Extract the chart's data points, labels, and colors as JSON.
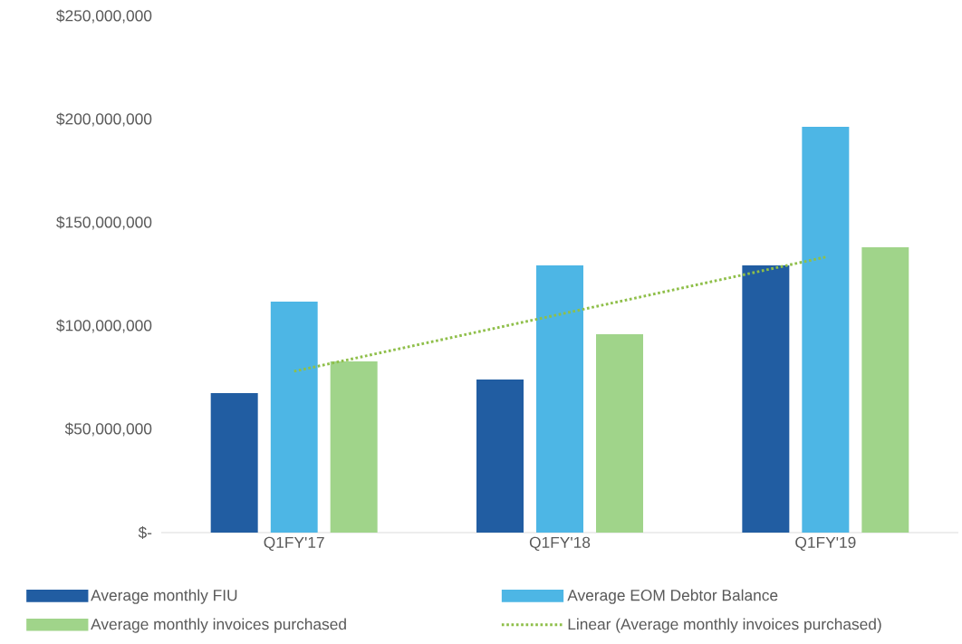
{
  "chart_data": {
    "type": "bar",
    "categories": [
      "Q1FY'17",
      "Q1FY'18",
      "Q1FY'19"
    ],
    "series": [
      {
        "name": "Average monthly FIU",
        "color": "#215da2",
        "values": [
          67500000,
          74100000,
          129400000
        ]
      },
      {
        "name": "Average EOM Debtor Balance",
        "color": "#4db6e5",
        "values": [
          111800000,
          129400000,
          196500000
        ]
      },
      {
        "name": "Average monthly invoices purchased",
        "color": "#a0d48a",
        "values": [
          82900000,
          96100000,
          138200000
        ]
      },
      {
        "name": "Linear (Average monthly invoices purchased)",
        "type": "line",
        "line_style": "dotted",
        "color": "#8fbf4a",
        "values": [
          78100000,
          105700000,
          133400000
        ]
      }
    ],
    "ylim": [
      0,
      250000000
    ],
    "yticks": [
      {
        "value": 0,
        "label": "$-"
      },
      {
        "value": 50000000,
        "label": "$50,000,000"
      },
      {
        "value": 100000000,
        "label": "$100,000,000"
      },
      {
        "value": 150000000,
        "label": "$150,000,000"
      },
      {
        "value": 200000000,
        "label": "$200,000,000"
      },
      {
        "value": 250000000,
        "label": "$250,000,000"
      }
    ],
    "legend": "bottom"
  }
}
